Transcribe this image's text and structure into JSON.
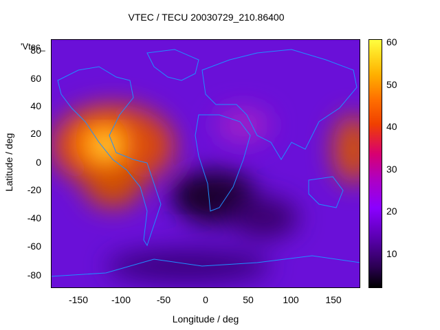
{
  "title": "VTEC / TECU 20030729_210.86400",
  "x_axis": {
    "label": "Longitude / deg",
    "ticks": [
      "-150",
      "-100",
      "-50",
      "0",
      "50",
      "100",
      "150"
    ],
    "tick_values": [
      -150,
      -100,
      -50,
      0,
      50,
      100,
      150
    ],
    "range": [
      -180,
      180
    ]
  },
  "y_axis": {
    "label": "Latitude / deg",
    "ticks": [
      "80",
      "60",
      "40",
      "20",
      "0",
      "-20",
      "-40",
      "-60",
      "-80"
    ],
    "tick_values": [
      80,
      60,
      40,
      20,
      0,
      -20,
      -40,
      -60,
      -80
    ],
    "range": [
      -90,
      90
    ]
  },
  "colorbar": {
    "ticks": [
      "60",
      "50",
      "40",
      "30",
      "20",
      "10"
    ],
    "tick_values": [
      60,
      50,
      40,
      30,
      20,
      10
    ],
    "range": [
      2,
      61
    ]
  },
  "legend": {
    "label": "'Vtec_"
  },
  "colors": {
    "coastline": "#1e90ff",
    "low": "#000000",
    "high": "#ffff40"
  },
  "chart_data": {
    "type": "heatmap",
    "title": "VTEC / TECU 20030729_210.86400",
    "xlabel": "Longitude / deg",
    "ylabel": "Latitude / deg",
    "xlim": [
      -180,
      180
    ],
    "ylim": [
      -90,
      90
    ],
    "zlim": [
      2,
      61
    ],
    "hotspots": [
      {
        "lon": -120,
        "lat": 12,
        "vtec": 60
      },
      {
        "lon": -150,
        "lat": 15,
        "vtec": 40
      },
      {
        "lon": -125,
        "lat": -20,
        "vtec": 35
      },
      {
        "lon": 170,
        "lat": 10,
        "vtec": 38
      },
      {
        "lon": 20,
        "lat": 25,
        "vtec": 25
      },
      {
        "lon": -10,
        "lat": -20,
        "vtec": 4
      },
      {
        "lon": 40,
        "lat": -10,
        "vtec": 8
      }
    ]
  }
}
